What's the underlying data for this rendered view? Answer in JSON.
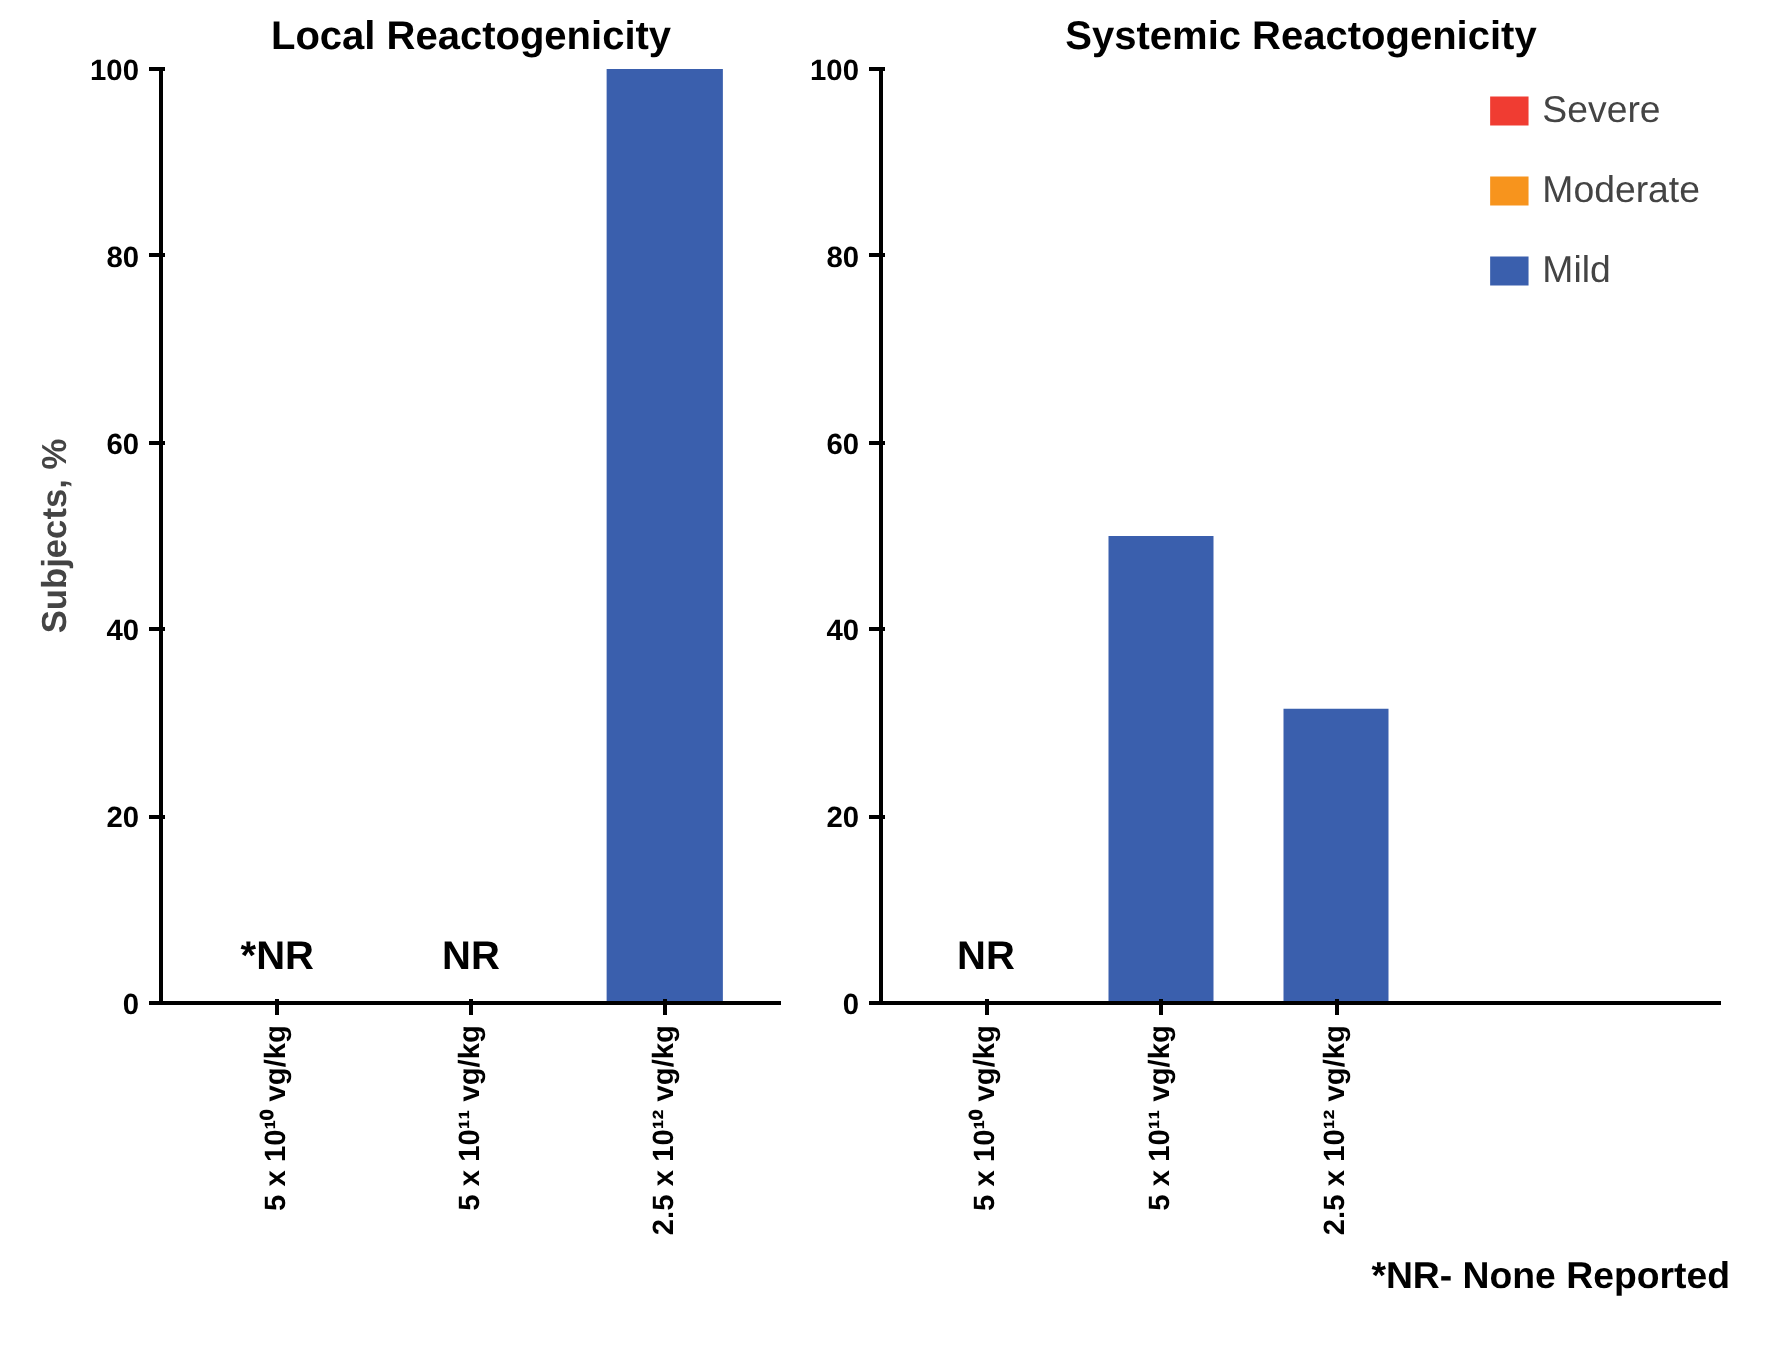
{
  "chart_data": [
    {
      "type": "bar",
      "title": "Local Reactogenicity",
      "ylabel": "Subjects, %",
      "categories": [
        "5 x 10¹⁰ vg/kg",
        "5 x 10¹¹ vg/kg",
        "2.5 x 10¹² vg/kg"
      ],
      "stacked": true,
      "series": [
        {
          "color": "#3a5fad",
          "values": [
            0,
            0,
            100
          ]
        }
      ],
      "ylim": [
        0,
        100
      ],
      "yticks": [
        0,
        20,
        40,
        60,
        80,
        100
      ],
      "grid": false,
      "legend": false,
      "annotations": [
        "*NR",
        "NR"
      ]
    },
    {
      "type": "bar",
      "title": "Systemic Reactogenicity",
      "categories": [
        "5 x 10¹⁰ vg/kg",
        "5 x 10¹¹ vg/kg",
        "2.5 x 10¹² vg/kg"
      ],
      "stacked": true,
      "series": [
        {
          "name": "Mild",
          "color": "#3a5fad",
          "values": [
            0,
            50,
            31.5
          ]
        },
        {
          "name": "Moderate",
          "color": "#f7941d",
          "values": [
            0,
            0,
            0
          ]
        },
        {
          "name": "Severe",
          "color": "#f03c32",
          "values": [
            0,
            0,
            0
          ]
        }
      ],
      "ylim": [
        0,
        100
      ],
      "yticks": [
        0,
        20,
        40,
        60,
        80,
        100
      ],
      "grid": false,
      "legend": "top right",
      "annotations": [
        "NR",
        "*NR- None Reported"
      ]
    }
  ]
}
